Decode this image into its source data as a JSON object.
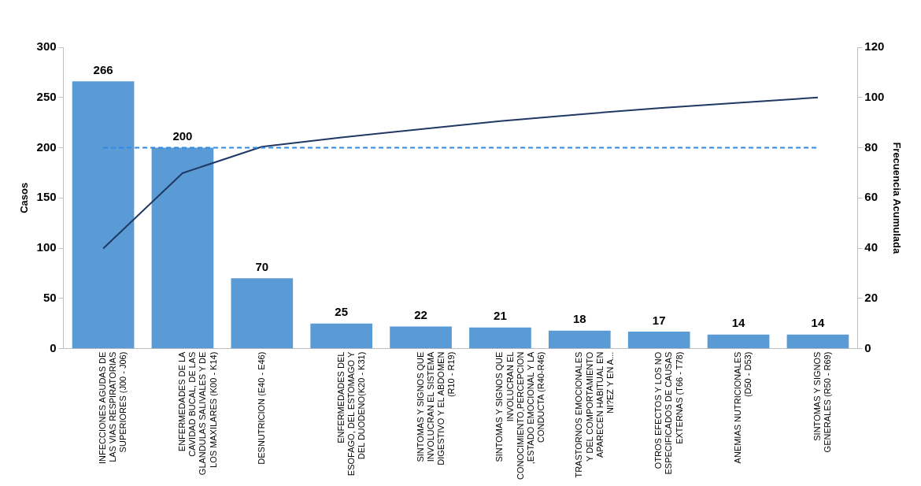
{
  "chart_data": {
    "type": "bar",
    "categories": [
      "INFECCIONES AGUDAS DE LAS VIAS RESPIRATORIAS SUPERIORES (J00 - J06)",
      "ENFERMEDADES DE LA CAVIDAD BUCAL, DE LAS GLANDULAS SALIVALES Y DE LOS MAXILARES (K00 - K14)",
      "DESNUTRICION (E40 - E46)",
      "ENFERMEDADES DEL ESOFAGO, DEL ESTOMAGO Y DEL DUODENO(K20 - K31)",
      "SINTOMAS Y SIGNOS QUE INVOLUCRAN EL SISTEMA DIGESTIVO Y EL ABDOMEN (R10 - R19)",
      "SINTOMAS Y SIGNOS QUE INVOLUCRAN EL CONOCIMIENTO,PERCEPCION,ESTADO EMOCIONAL Y LA CONDUCTA (R40-R46)",
      "TRASTORNOS EMOCIONALES Y DEL COMPORTAMIENTO APARECEN HABITUAL EN NI?EZ Y EN A...",
      "OTROS EFECTOS Y LOS NO ESPECIFICADOS DE CAUSAS EXTERNAS (T66 - T78)",
      "ANEMIAS NUTRICIONALES (D50 - D53)",
      "SINTOMAS Y SIGNOS GENERALES (R50 - R69)"
    ],
    "series": [
      {
        "color": "#5b9bd5",
        "values": [
          266,
          200,
          70,
          25,
          22,
          21,
          18,
          17,
          14,
          14
        ],
        "value_labels": [
          "266",
          "200",
          "70",
          "25",
          "22",
          "21",
          "18",
          "17",
          "14",
          "14"
        ]
      },
      {
        "type": "line",
        "axis": "y2",
        "color": "#1f3864",
        "values": [
          39.9,
          69.9,
          80.4,
          84.1,
          87.4,
          90.6,
          93.3,
          95.8,
          97.9,
          100
        ]
      }
    ],
    "ylabel": "Casos",
    "y2label": "Frecuencia Acumulada",
    "ylim": [
      0,
      300
    ],
    "yticks": [
      0,
      50,
      100,
      150,
      200,
      250,
      300
    ],
    "y2lim": [
      0,
      120
    ],
    "y2ticks": [
      0,
      20,
      40,
      60,
      80,
      100,
      120
    ],
    "ref_lines": [
      {
        "axis": "y2",
        "value": 80,
        "color": "#2e8ae6",
        "line_style": "dashed"
      }
    ],
    "grid": false,
    "legend": false,
    "marker": "none",
    "line_style": "solid"
  }
}
